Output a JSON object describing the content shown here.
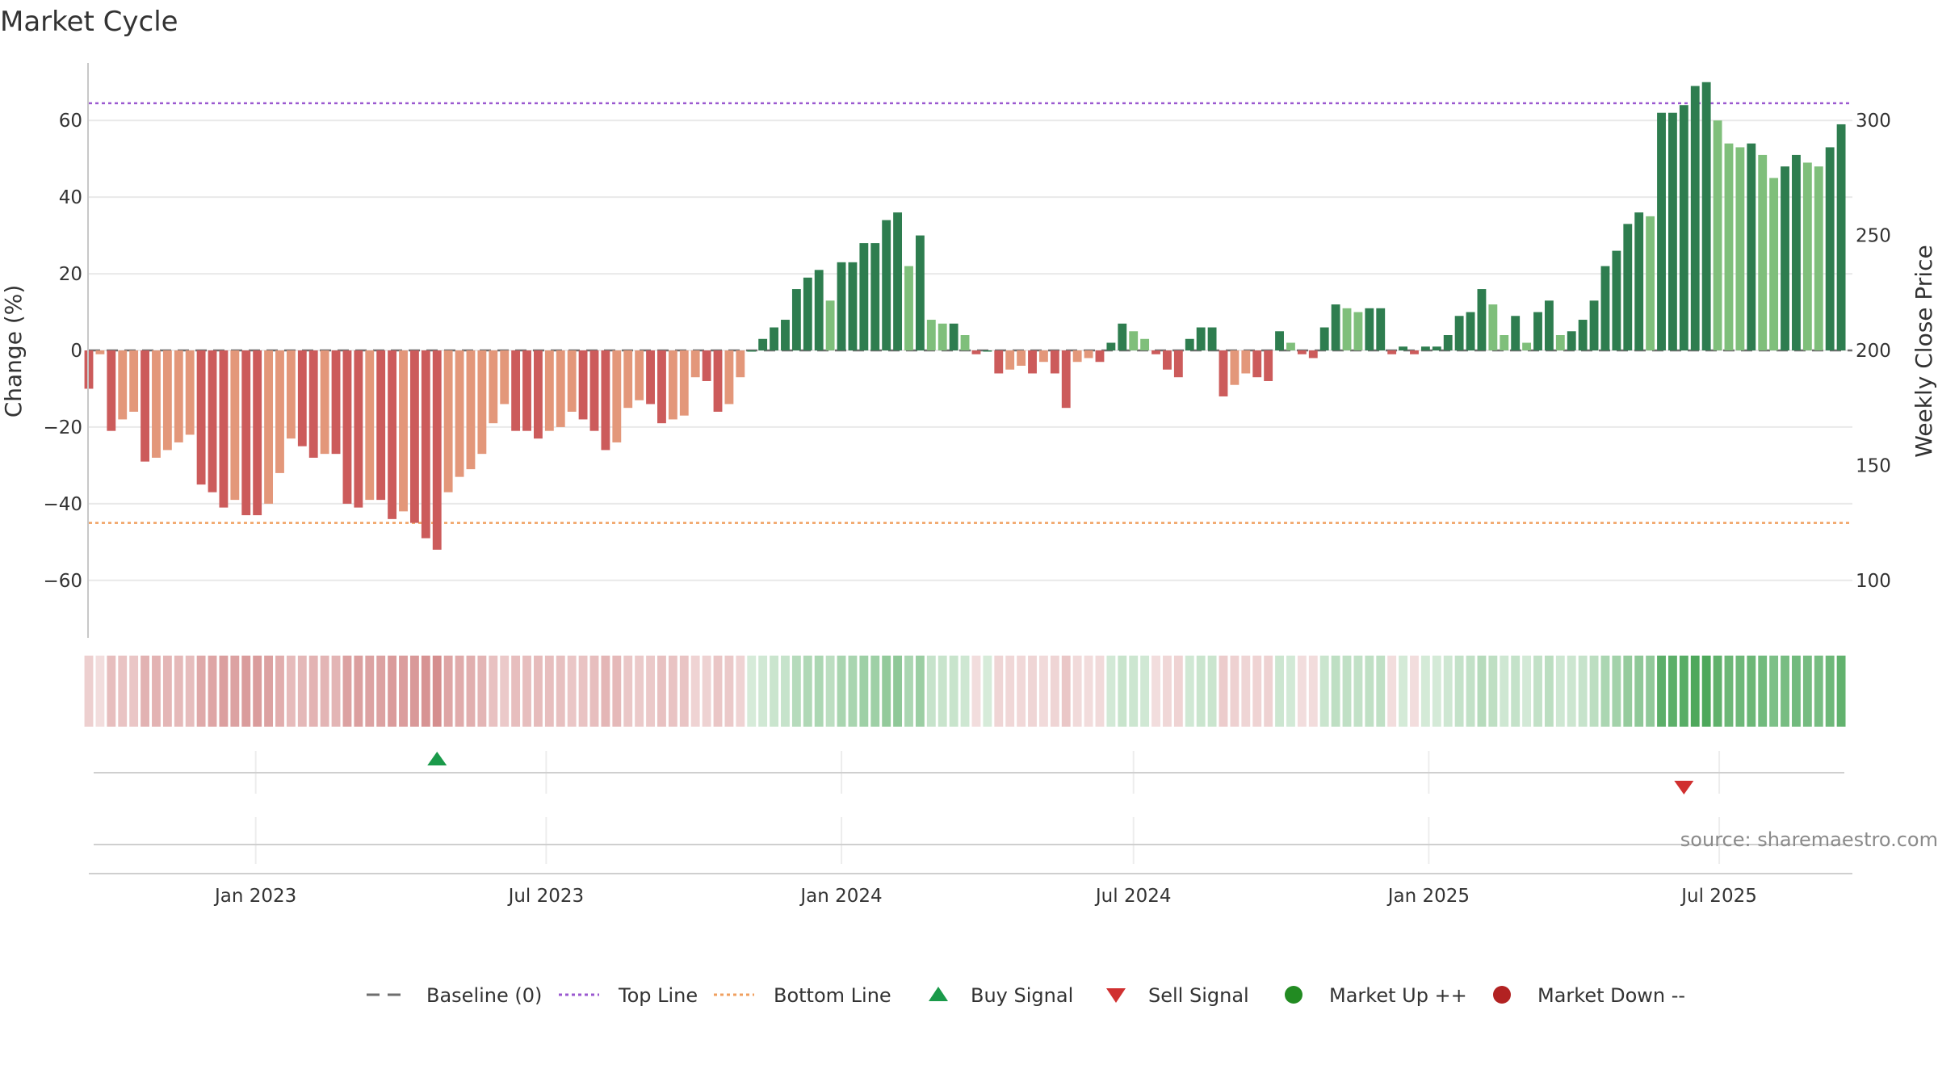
{
  "chart_data": {
    "type": "bar",
    "title": "Market Cycle",
    "ylabel": "Change (%)",
    "y2label": "Weekly Close Price",
    "ylim": [
      -75,
      75
    ],
    "y2lim": [
      75,
      325
    ],
    "yticks": [
      -60,
      -40,
      -20,
      0,
      20,
      40,
      60
    ],
    "y2ticks": [
      100,
      150,
      200,
      250,
      300
    ],
    "x_start": "2022-09-19",
    "x_end": "2025-09-22",
    "x_step_days": 7,
    "xticks": [
      {
        "date": "2023-01-01",
        "label": "Jan 2023"
      },
      {
        "date": "2023-07-01",
        "label": "Jul 2023"
      },
      {
        "date": "2024-01-01",
        "label": "Jan 2024"
      },
      {
        "date": "2024-07-01",
        "label": "Jul 2024"
      },
      {
        "date": "2025-01-01",
        "label": "Jan 2025"
      },
      {
        "date": "2025-07-01",
        "label": "Jul 2025"
      }
    ],
    "grid": true,
    "top_line": 64.5,
    "bottom_line": -45,
    "baseline": 0,
    "values": [
      -10,
      -1,
      -21,
      -18,
      -16,
      -29,
      -28,
      -26,
      -24,
      -22,
      -35,
      -37,
      -41,
      -39,
      -43,
      -43,
      -40,
      -32,
      -23,
      -25,
      -28,
      -27,
      -27,
      -40,
      -41,
      -39,
      -39,
      -44,
      -42,
      -45,
      -49,
      -52,
      -37,
      -33,
      -31,
      -27,
      -19,
      -14,
      -21,
      -21,
      -23,
      -21,
      -20,
      -16,
      -18,
      -21,
      -26,
      -24,
      -15,
      -13,
      -14,
      -19,
      -18,
      -17,
      -7,
      -8,
      -16,
      -14,
      -7,
      0,
      3,
      6,
      8,
      16,
      19,
      21,
      13,
      23,
      23,
      28,
      28,
      34,
      36,
      22,
      30,
      8,
      7,
      7,
      4,
      -1,
      0,
      -6,
      -5,
      -4,
      -6,
      -3,
      -6,
      -15,
      -3,
      -2,
      -3,
      2,
      7,
      5,
      3,
      -1,
      -5,
      -7,
      3,
      6,
      6,
      -12,
      -9,
      -6,
      -7,
      -8,
      5,
      2,
      -1,
      -2,
      6,
      12,
      11,
      10,
      11,
      11,
      -1,
      1,
      -1,
      1,
      1,
      4,
      9,
      10,
      16,
      12,
      4,
      9,
      2,
      10,
      13,
      4,
      5,
      8,
      13,
      22,
      26,
      33,
      36,
      35,
      62,
      62,
      64,
      69,
      70,
      60,
      54,
      53,
      54,
      51,
      45,
      48,
      51,
      49,
      48,
      53,
      59
    ],
    "signals": [
      {
        "type": "Buy Signal",
        "date": "2023-04-24"
      },
      {
        "type": "Sell Signal",
        "date": "2025-06-09"
      }
    ],
    "legend": [
      {
        "name": "Baseline (0)",
        "style": "dash",
        "color": "#6e6e6e"
      },
      {
        "name": "Top Line",
        "style": "dot",
        "color": "#9b59d0"
      },
      {
        "name": "Bottom Line",
        "style": "dot",
        "color": "#f0a060"
      },
      {
        "name": "Buy Signal",
        "style": "triangle-up",
        "color": "#1a9a4a"
      },
      {
        "name": "Sell Signal",
        "style": "triangle-down",
        "color": "#d03030"
      },
      {
        "name": "Market Up ++",
        "style": "circle",
        "color": "#228b22"
      },
      {
        "name": "Market Down --",
        "style": "circle",
        "color": "#b22222"
      }
    ],
    "legend_position": "bottom-center",
    "colors": {
      "up_strong": "#2e7d4f",
      "up_light": "#7fbf7b",
      "down_strong": "#cc5b5b",
      "down_light": "#e3977a",
      "heat_up": "#43a352",
      "heat_down": "#c86b6b"
    }
  },
  "source": "source: sharemaestro.com"
}
